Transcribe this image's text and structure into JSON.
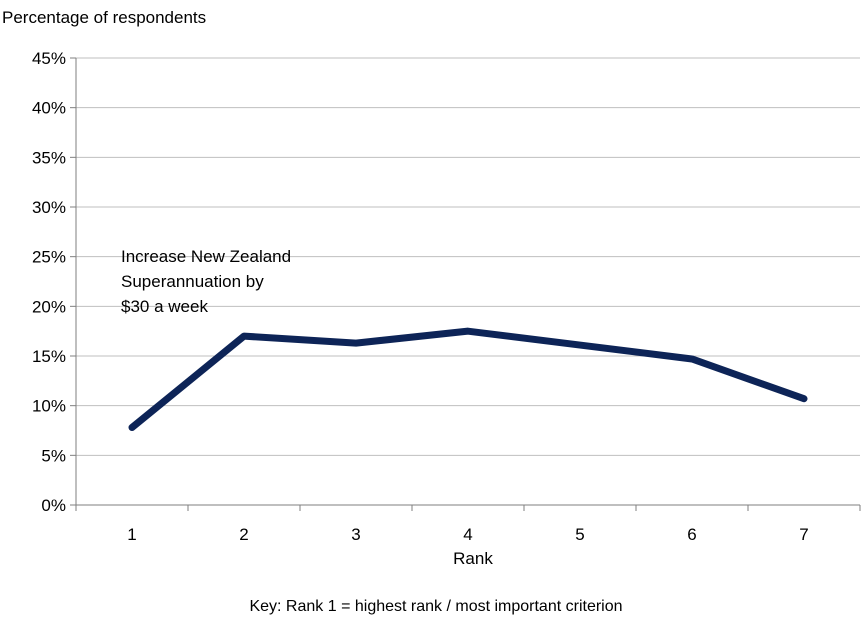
{
  "chart_data": {
    "type": "line",
    "ylabel": "Percentage of respondents",
    "xlabel": "Rank",
    "x": [
      "1",
      "2",
      "3",
      "4",
      "5",
      "6",
      "7"
    ],
    "series": [
      {
        "name": "Increase New Zealand Superannuation by $30 a week",
        "values": [
          7.8,
          17.0,
          16.3,
          17.5,
          16.1,
          14.7,
          10.7
        ]
      }
    ],
    "annotation_lines": [
      "Increase New Zealand",
      "Superannuation by",
      "$30 a week"
    ],
    "ylim": [
      0,
      45
    ],
    "yticks": [
      0,
      5,
      10,
      15,
      20,
      25,
      30,
      35,
      40,
      45
    ],
    "ytick_labels": [
      "0%",
      "5%",
      "10%",
      "15%",
      "20%",
      "25%",
      "30%",
      "35%",
      "40%",
      "45%"
    ],
    "grid": true,
    "series_color": "#0d2457",
    "grid_color": "#bfbfbf",
    "key": "Key: Rank 1 = highest rank / most important criterion"
  }
}
